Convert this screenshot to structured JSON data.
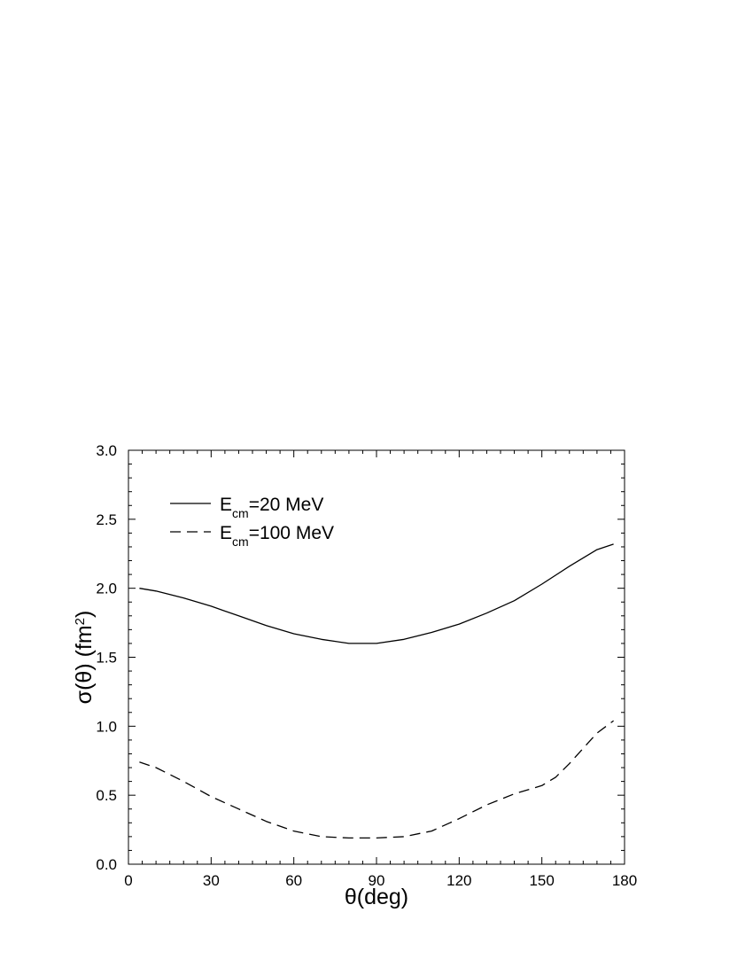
{
  "chart_data": {
    "type": "line",
    "xlabel": "θ(deg)",
    "ylabel": "σ(θ) (fm2)",
    "ylabel_parts": {
      "main": "σ(θ) (fm",
      "sup": "2",
      "close": ")"
    },
    "xlim": [
      0,
      180
    ],
    "ylim": [
      0,
      3.0
    ],
    "x_ticks": [
      0,
      30,
      60,
      90,
      120,
      150,
      180
    ],
    "x_tick_labels": [
      "0",
      "30",
      "60",
      "90",
      "120",
      "150",
      "180"
    ],
    "y_ticks": [
      0,
      0.5,
      1.0,
      1.5,
      2.0,
      2.5,
      3.0
    ],
    "y_tick_labels": [
      "0.0",
      "0.5",
      "1.0",
      "1.5",
      "2.0",
      "2.5",
      "3.0"
    ],
    "x_minor_step": 5,
    "y_minor_step": 0.1,
    "grid": false,
    "legend_position": "top-left",
    "series": [
      {
        "name": "Ecm=20 MeV",
        "legend": {
          "main": "E",
          "sub": "cm",
          "rest": "=20 MeV"
        },
        "line_style": "solid",
        "color": "#000000",
        "x": [
          4,
          10,
          20,
          30,
          40,
          50,
          60,
          70,
          80,
          85,
          90,
          100,
          110,
          120,
          130,
          140,
          150,
          160,
          170,
          176
        ],
        "y": [
          2.0,
          1.98,
          1.93,
          1.87,
          1.8,
          1.73,
          1.67,
          1.63,
          1.6,
          1.6,
          1.6,
          1.63,
          1.68,
          1.74,
          1.82,
          1.91,
          2.03,
          2.16,
          2.28,
          2.32
        ]
      },
      {
        "name": "Ecm=100 MeV",
        "legend": {
          "main": "E",
          "sub": "cm",
          "rest": "=100 MeV"
        },
        "line_style": "dashed",
        "color": "#000000",
        "x": [
          4,
          10,
          20,
          30,
          40,
          50,
          60,
          70,
          80,
          90,
          100,
          110,
          120,
          130,
          140,
          150,
          155,
          160,
          170,
          176
        ],
        "y": [
          0.74,
          0.7,
          0.6,
          0.49,
          0.4,
          0.31,
          0.24,
          0.2,
          0.19,
          0.19,
          0.2,
          0.24,
          0.33,
          0.43,
          0.51,
          0.57,
          0.63,
          0.73,
          0.95,
          1.04
        ]
      }
    ]
  }
}
